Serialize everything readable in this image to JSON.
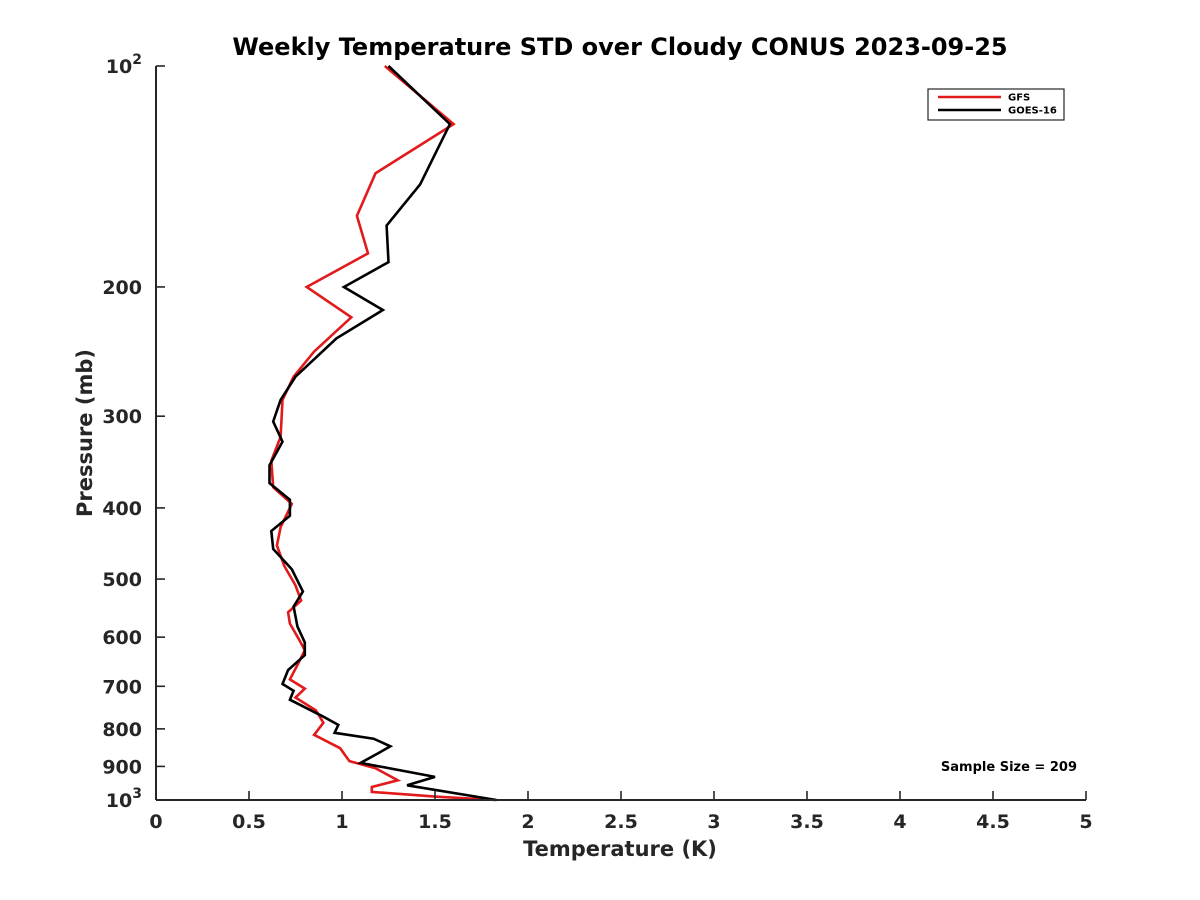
{
  "chart_data": {
    "type": "line",
    "title": "Weekly Temperature STD over Cloudy CONUS 2023-09-25",
    "xlabel": "Temperature (K)",
    "ylabel": "Pressure (mb)",
    "xlim": [
      0,
      5
    ],
    "ylim": [
      100,
      1000
    ],
    "y_scale": "log",
    "y_reversed": true,
    "x_ticks": [
      {
        "value": 0,
        "label": "0"
      },
      {
        "value": 0.5,
        "label": "0.5"
      },
      {
        "value": 1,
        "label": "1"
      },
      {
        "value": 1.5,
        "label": "1.5"
      },
      {
        "value": 2,
        "label": "2"
      },
      {
        "value": 2.5,
        "label": "2.5"
      },
      {
        "value": 3,
        "label": "3"
      },
      {
        "value": 3.5,
        "label": "3.5"
      },
      {
        "value": 4,
        "label": "4"
      },
      {
        "value": 4.5,
        "label": "4.5"
      },
      {
        "value": 5,
        "label": "5"
      }
    ],
    "y_ticks": [
      {
        "value": 100,
        "base": "10",
        "exp": "2"
      },
      {
        "value": 200,
        "label": "200"
      },
      {
        "value": 300,
        "label": "300"
      },
      {
        "value": 400,
        "label": "400"
      },
      {
        "value": 500,
        "label": "500"
      },
      {
        "value": 600,
        "label": "600"
      },
      {
        "value": 700,
        "label": "700"
      },
      {
        "value": 800,
        "label": "800"
      },
      {
        "value": 900,
        "label": "900"
      },
      {
        "value": 1000,
        "base": "10",
        "exp": "3"
      }
    ],
    "legend_position": "top-right",
    "annotation": "Sample Size = 209",
    "series": [
      {
        "name": "GFS",
        "color": "#e31a1c",
        "points": [
          [
            1.23,
            100
          ],
          [
            1.6,
            120
          ],
          [
            1.18,
            140
          ],
          [
            1.08,
            160
          ],
          [
            1.14,
            180
          ],
          [
            0.81,
            200
          ],
          [
            1.05,
            220
          ],
          [
            0.85,
            245
          ],
          [
            0.74,
            265
          ],
          [
            0.68,
            285
          ],
          [
            0.67,
            320
          ],
          [
            0.62,
            345
          ],
          [
            0.63,
            375
          ],
          [
            0.73,
            395
          ],
          [
            0.67,
            425
          ],
          [
            0.65,
            450
          ],
          [
            0.69,
            480
          ],
          [
            0.75,
            510
          ],
          [
            0.78,
            535
          ],
          [
            0.71,
            555
          ],
          [
            0.72,
            575
          ],
          [
            0.77,
            605
          ],
          [
            0.8,
            625
          ],
          [
            0.76,
            655
          ],
          [
            0.72,
            685
          ],
          [
            0.8,
            705
          ],
          [
            0.75,
            725
          ],
          [
            0.86,
            755
          ],
          [
            0.9,
            785
          ],
          [
            0.85,
            815
          ],
          [
            0.99,
            850
          ],
          [
            1.04,
            885
          ],
          [
            1.18,
            905
          ],
          [
            1.3,
            940
          ],
          [
            1.16,
            960
          ],
          [
            1.16,
            975
          ],
          [
            1.52,
            990
          ],
          [
            1.83,
            1000
          ]
        ]
      },
      {
        "name": "GOES-16",
        "color": "#000000",
        "points": [
          [
            1.25,
            100
          ],
          [
            1.58,
            120
          ],
          [
            1.42,
            145
          ],
          [
            1.24,
            165
          ],
          [
            1.25,
            185
          ],
          [
            1.01,
            200
          ],
          [
            1.22,
            215
          ],
          [
            0.97,
            235
          ],
          [
            0.75,
            265
          ],
          [
            0.67,
            285
          ],
          [
            0.63,
            305
          ],
          [
            0.68,
            325
          ],
          [
            0.61,
            350
          ],
          [
            0.61,
            370
          ],
          [
            0.72,
            390
          ],
          [
            0.72,
            410
          ],
          [
            0.62,
            430
          ],
          [
            0.63,
            455
          ],
          [
            0.73,
            485
          ],
          [
            0.79,
            520
          ],
          [
            0.74,
            545
          ],
          [
            0.76,
            580
          ],
          [
            0.8,
            610
          ],
          [
            0.8,
            635
          ],
          [
            0.71,
            665
          ],
          [
            0.68,
            695
          ],
          [
            0.74,
            710
          ],
          [
            0.72,
            730
          ],
          [
            0.9,
            770
          ],
          [
            0.98,
            790
          ],
          [
            0.96,
            810
          ],
          [
            1.17,
            825
          ],
          [
            1.26,
            845
          ],
          [
            1.19,
            865
          ],
          [
            1.1,
            890
          ],
          [
            1.5,
            930
          ],
          [
            1.35,
            955
          ],
          [
            1.83,
            1000
          ]
        ]
      }
    ]
  }
}
